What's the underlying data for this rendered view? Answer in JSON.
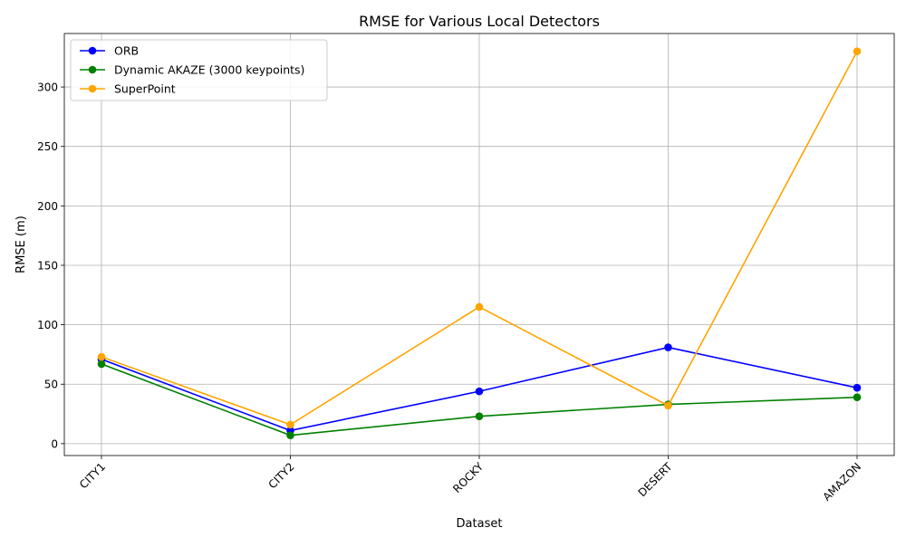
{
  "chart_data": {
    "type": "line",
    "title": "RMSE for Various Local Detectors",
    "xlabel": "Dataset",
    "ylabel": "RMSE (m)",
    "categories": [
      "CITY1",
      "CITY2",
      "ROCKY",
      "DESERT",
      "AMAZON"
    ],
    "ylim": [
      -10,
      345
    ],
    "yticks": [
      0,
      50,
      100,
      150,
      200,
      250,
      300
    ],
    "grid": true,
    "legend_position": "top-left",
    "series": [
      {
        "name": "ORB",
        "color": "#0000ff",
        "values": [
          71,
          11,
          44,
          81,
          47
        ]
      },
      {
        "name": "Dynamic AKAZE (3000 keypoints)",
        "color": "#008000",
        "values": [
          67,
          7,
          23,
          33,
          39
        ]
      },
      {
        "name": "SuperPoint",
        "color": "#ffa500",
        "values": [
          73,
          16,
          115,
          32,
          330
        ]
      }
    ]
  }
}
